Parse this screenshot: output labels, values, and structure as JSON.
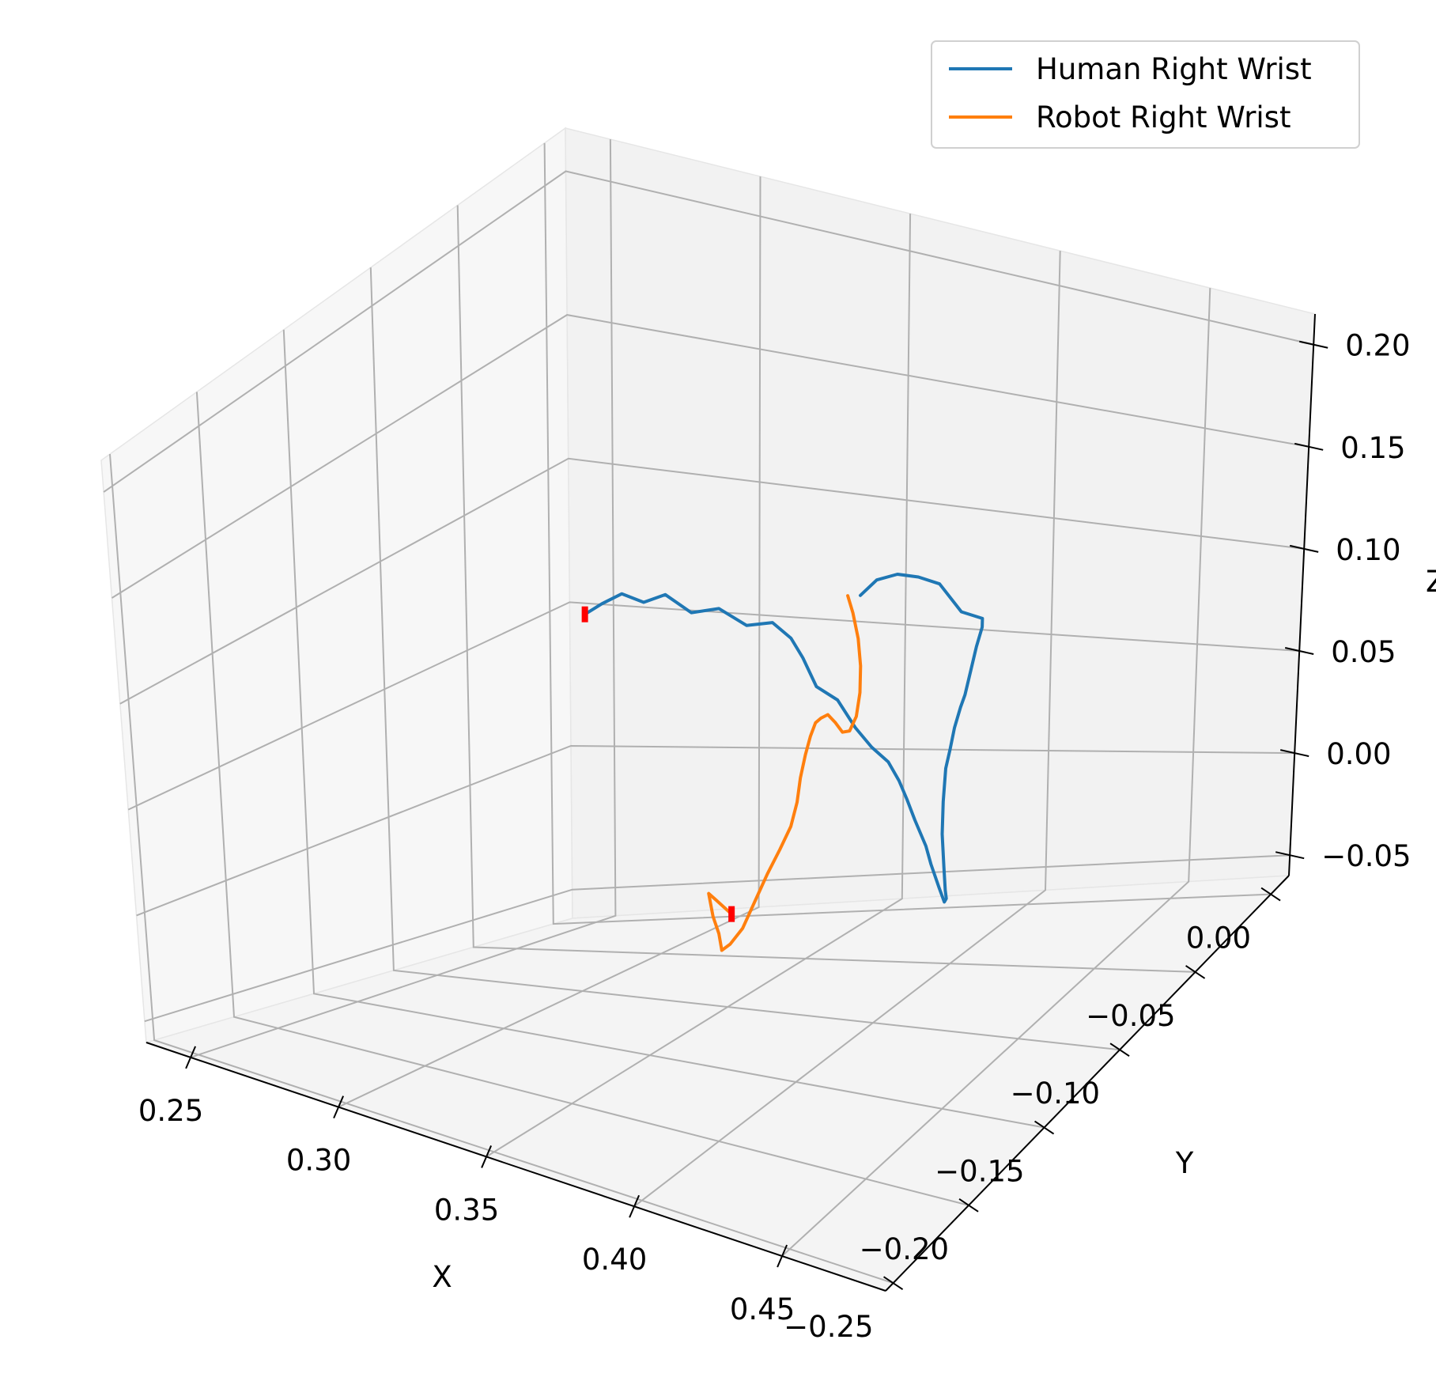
{
  "chart_data": {
    "type": "line",
    "projection": "3d",
    "title": "",
    "xlabel": "X",
    "ylabel": "Y",
    "zlabel": "Z",
    "xlim": [
      0.235,
      0.485
    ],
    "ylim": [
      -0.255,
      0.012
    ],
    "zlim": [
      -0.06,
      0.215
    ],
    "xticks": [
      "0.25",
      "0.30",
      "0.35",
      "0.40",
      "0.45"
    ],
    "yticks": [
      "0.00",
      "−0.05",
      "−0.10",
      "−0.15",
      "−0.20",
      "−0.25"
    ],
    "zticks": [
      "−0.05",
      "0.00",
      "0.05",
      "0.10",
      "0.15",
      "0.20"
    ],
    "grid": true,
    "legend_position": "top-right",
    "colors": {
      "human": "#1f77b4",
      "robot": "#ff7f0e",
      "marker": "#ff0000",
      "pane_left": "#f7f7f7",
      "pane_right": "#f2f2f2",
      "pane_floor": "#f4f4f4",
      "grid": "#b0b0b0"
    },
    "series": [
      {
        "name": "Human Right Wrist",
        "x": [
          0.247,
          0.254,
          0.262,
          0.27,
          0.278,
          0.288,
          0.298,
          0.308,
          0.318,
          0.326,
          0.334,
          0.342,
          0.352,
          0.362,
          0.372,
          0.381,
          0.388,
          0.394,
          0.4,
          0.407,
          0.412,
          0.418,
          0.423,
          0.427,
          0.43,
          0.433,
          0.436,
          0.44,
          0.444,
          0.448,
          0.452,
          0.456,
          0.46,
          0.464,
          0.468,
          0.472,
          0.474,
          0.47,
          0.466,
          0.462,
          0.458,
          0.454,
          0.45
        ],
        "y": [
          0.0,
          -0.002,
          -0.004,
          -0.005,
          -0.006,
          -0.008,
          -0.009,
          -0.01,
          -0.012,
          -0.015,
          -0.022,
          -0.028,
          -0.033,
          -0.04,
          -0.048,
          -0.054,
          -0.06,
          -0.066,
          -0.072,
          -0.078,
          -0.084,
          -0.09,
          -0.096,
          -0.102,
          -0.108,
          -0.114,
          -0.12,
          -0.126,
          -0.131,
          -0.135,
          -0.139,
          -0.142,
          -0.146,
          -0.149,
          -0.152,
          -0.155,
          -0.158,
          -0.163,
          -0.168,
          -0.173,
          -0.178,
          -0.183,
          -0.186
        ],
        "z": [
          0.05,
          0.055,
          0.06,
          0.058,
          0.062,
          0.057,
          0.06,
          0.055,
          0.058,
          0.054,
          0.05,
          0.042,
          0.04,
          0.033,
          0.03,
          0.028,
          0.024,
          0.02,
          0.015,
          0.008,
          0.004,
          -0.002,
          -0.004,
          0.002,
          0.01,
          0.025,
          0.045,
          0.065,
          0.085,
          0.098,
          0.112,
          0.125,
          0.135,
          0.15,
          0.165,
          0.178,
          0.185,
          0.19,
          0.205,
          0.21,
          0.213,
          0.212,
          0.205
        ]
      },
      {
        "name": "Robot Right Wrist",
        "x": [
          0.341,
          0.337,
          0.336,
          0.339,
          0.342,
          0.344,
          0.348,
          0.353,
          0.358,
          0.363,
          0.368,
          0.373,
          0.377,
          0.38,
          0.383,
          0.386,
          0.389,
          0.392,
          0.395,
          0.398,
          0.401,
          0.404,
          0.407,
          0.409,
          0.41,
          0.41,
          0.409,
          0.408
        ],
        "y": [
          -0.08,
          -0.082,
          -0.085,
          -0.088,
          -0.09,
          -0.092,
          -0.094,
          -0.095,
          -0.096,
          -0.097,
          -0.098,
          -0.1,
          -0.103,
          -0.106,
          -0.108,
          -0.11,
          -0.112,
          -0.114,
          -0.115,
          -0.116,
          -0.117,
          -0.118,
          -0.119,
          -0.12,
          -0.121,
          -0.122,
          -0.123,
          -0.124
        ],
        "z": [
          -0.03,
          -0.024,
          -0.02,
          -0.028,
          -0.034,
          -0.04,
          -0.036,
          -0.028,
          -0.015,
          -0.002,
          0.01,
          0.022,
          0.035,
          0.048,
          0.06,
          0.07,
          0.078,
          0.082,
          0.085,
          0.083,
          0.08,
          0.082,
          0.09,
          0.102,
          0.115,
          0.128,
          0.14,
          0.148
        ]
      }
    ],
    "markers": [
      {
        "series": "Human Right Wrist",
        "x": 0.247,
        "y": 0.0,
        "z": 0.05
      },
      {
        "series": "Robot Right Wrist",
        "x": 0.341,
        "y": -0.08,
        "z": -0.03
      }
    ]
  }
}
